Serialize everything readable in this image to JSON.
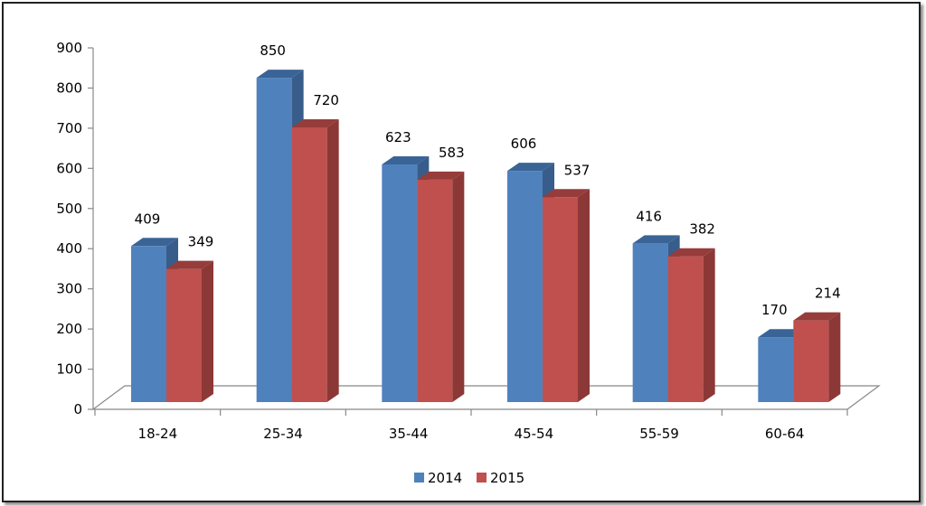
{
  "chart_data": {
    "type": "bar",
    "categories": [
      "18-24",
      "25-34",
      "35-44",
      "45-54",
      "55-59",
      "60-64"
    ],
    "series": [
      {
        "name": "2014",
        "values": [
          409,
          850,
          623,
          606,
          416,
          170
        ],
        "color": "#4F81BD",
        "side_color": "#385D8A",
        "top_color": "#3A6496"
      },
      {
        "name": "2015",
        "values": [
          349,
          720,
          583,
          537,
          382,
          214
        ],
        "color": "#C0504D",
        "side_color": "#8C3836",
        "top_color": "#963C3A"
      }
    ],
    "ylim": [
      0,
      900
    ],
    "yticks": [
      0,
      100,
      200,
      300,
      400,
      500,
      600,
      700,
      800,
      900
    ],
    "grid": false,
    "legend_position": "bottom",
    "style": "3d-clustered-column"
  }
}
